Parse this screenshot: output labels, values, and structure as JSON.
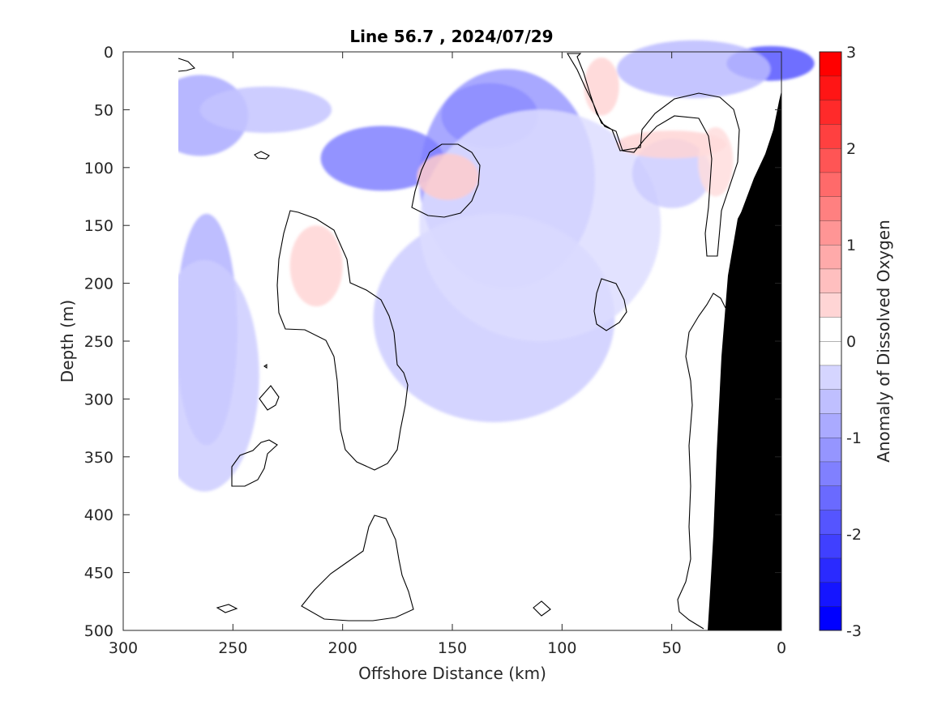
{
  "chart_data": {
    "type": "heatmap",
    "title": "Line 56.7 , 2024/07/29",
    "xlabel": "Offshore Distance (km)",
    "ylabel": "Depth (m)",
    "xlim": [
      300,
      0
    ],
    "ylim": [
      0,
      500
    ],
    "x_reversed": true,
    "y_reversed": true,
    "x_ticks": [
      300,
      250,
      200,
      150,
      100,
      50,
      0
    ],
    "y_ticks": [
      0,
      50,
      100,
      150,
      200,
      250,
      300,
      350,
      400,
      450,
      500
    ],
    "colorbar": {
      "label": "Anomaly of Dissolved Oxygen",
      "range": [
        -3,
        3
      ],
      "step": 0.25,
      "ticks": [
        -3,
        -2,
        -1,
        0,
        1,
        2,
        3
      ],
      "tick_labels": [
        "-3",
        "-2",
        "-1",
        "0",
        "1",
        "2",
        "3"
      ],
      "colormap": "blue-white-red"
    },
    "zero_contour": true,
    "bathymetry_color": "#000000",
    "anomaly_patches": [
      {
        "x": 133,
        "y": 55,
        "rx": 22,
        "ry": 28,
        "value": -2.0
      },
      {
        "x": 125,
        "y": 110,
        "rx": 40,
        "ry": 95,
        "value": -1.2
      },
      {
        "x": 182,
        "y": 92,
        "rx": 28,
        "ry": 28,
        "value": -1.5
      },
      {
        "x": 265,
        "y": 55,
        "rx": 22,
        "ry": 35,
        "value": -1.0
      },
      {
        "x": 235,
        "y": 50,
        "rx": 30,
        "ry": 20,
        "value": -0.7
      },
      {
        "x": 262,
        "y": 240,
        "rx": 14,
        "ry": 100,
        "value": -0.9
      },
      {
        "x": 263,
        "y": 280,
        "rx": 25,
        "ry": 100,
        "value": -0.6
      },
      {
        "x": 131,
        "y": 230,
        "rx": 55,
        "ry": 90,
        "value": -0.6
      },
      {
        "x": 110,
        "y": 150,
        "rx": 55,
        "ry": 100,
        "value": -0.4
      },
      {
        "x": 5,
        "y": 10,
        "rx": 20,
        "ry": 15,
        "value": -2.0
      },
      {
        "x": 40,
        "y": 15,
        "rx": 35,
        "ry": 25,
        "value": -0.8
      },
      {
        "x": 50,
        "y": 105,
        "rx": 18,
        "ry": 30,
        "value": -0.6
      },
      {
        "x": 152,
        "y": 108,
        "rx": 14,
        "ry": 20,
        "value": 0.6
      },
      {
        "x": 212,
        "y": 185,
        "rx": 12,
        "ry": 35,
        "value": 0.5
      },
      {
        "x": 82,
        "y": 30,
        "rx": 8,
        "ry": 25,
        "value": 0.5
      },
      {
        "x": 50,
        "y": 80,
        "rx": 25,
        "ry": 12,
        "value": 0.5
      },
      {
        "x": 30,
        "y": 95,
        "rx": 8,
        "ry": 30,
        "value": 0.4
      }
    ]
  }
}
